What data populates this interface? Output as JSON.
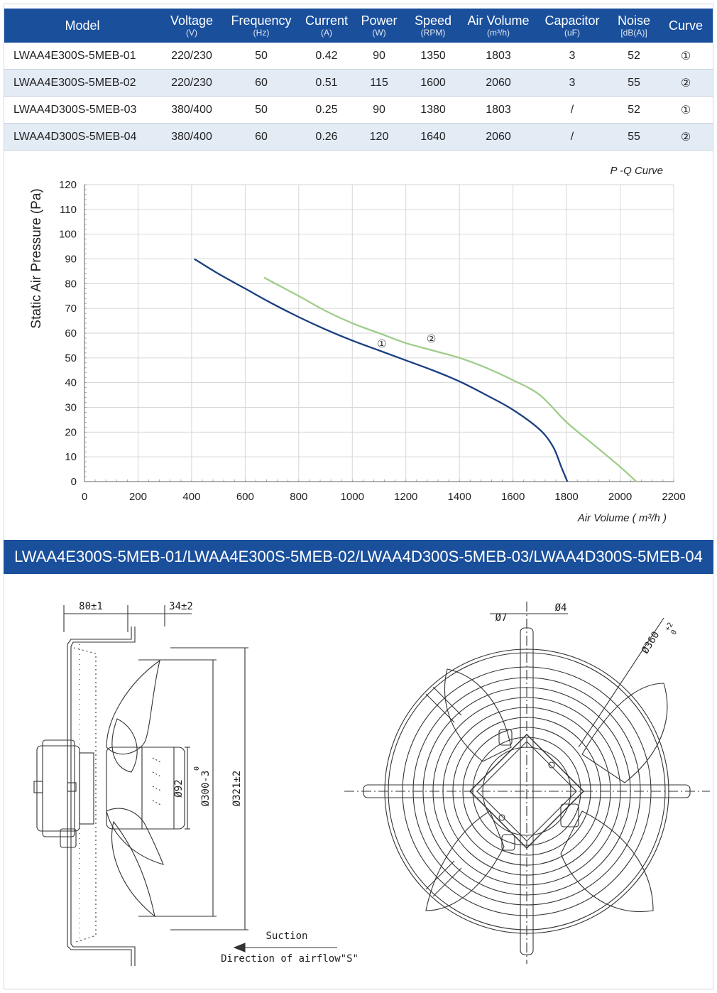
{
  "table": {
    "headers": [
      {
        "label": "Model",
        "unit": ""
      },
      {
        "label": "Voltage",
        "unit": "(V)"
      },
      {
        "label": "Frequency",
        "unit": "(Hz)"
      },
      {
        "label": "Current",
        "unit": "(A)"
      },
      {
        "label": "Power",
        "unit": "(W)"
      },
      {
        "label": "Speed",
        "unit": "(RPM)"
      },
      {
        "label": "Air Volume",
        "unit": "(m³/h)"
      },
      {
        "label": "Capacitor",
        "unit": "(uF)"
      },
      {
        "label": "Noise",
        "unit": "[dB(A)]"
      },
      {
        "label": "Curve",
        "unit": ""
      }
    ],
    "rows": [
      [
        "LWAA4E300S-5MEB-01",
        "220/230",
        "50",
        "0.42",
        "90",
        "1350",
        "1803",
        "3",
        "52",
        "①"
      ],
      [
        "LWAA4E300S-5MEB-02",
        "220/230",
        "60",
        "0.51",
        "115",
        "1600",
        "2060",
        "3",
        "55",
        "②"
      ],
      [
        "LWAA4D300S-5MEB-03",
        "380/400",
        "50",
        "0.25",
        "90",
        "1380",
        "1803",
        "/",
        "52",
        "①"
      ],
      [
        "LWAA4D300S-5MEB-04",
        "380/400",
        "60",
        "0.26",
        "120",
        "1640",
        "2060",
        "/",
        "55",
        "②"
      ]
    ]
  },
  "chart_data": {
    "type": "line",
    "title": "P -Q Curve",
    "xlabel": "Air Volume ( m³/h )",
    "ylabel": "Static Air Pressure  (Pa)",
    "xlim": [
      0,
      2200
    ],
    "ylim": [
      0,
      120
    ],
    "xticks": [
      0,
      200,
      400,
      600,
      800,
      1000,
      1200,
      1400,
      1600,
      1800,
      2000,
      2200
    ],
    "yticks": [
      0,
      10,
      20,
      30,
      40,
      50,
      60,
      70,
      80,
      90,
      100,
      110,
      120
    ],
    "grid": true,
    "series": [
      {
        "name": "①",
        "color": "#1b3f80",
        "points": [
          [
            410,
            90
          ],
          [
            500,
            84
          ],
          [
            600,
            78
          ],
          [
            700,
            72
          ],
          [
            800,
            66.5
          ],
          [
            900,
            61.5
          ],
          [
            1000,
            57
          ],
          [
            1100,
            53
          ],
          [
            1200,
            49
          ],
          [
            1300,
            45
          ],
          [
            1400,
            40.5
          ],
          [
            1500,
            35
          ],
          [
            1600,
            29
          ],
          [
            1700,
            21
          ],
          [
            1750,
            14
          ],
          [
            1780,
            6
          ],
          [
            1803,
            0
          ]
        ]
      },
      {
        "name": "②",
        "color": "#9fcd8a",
        "points": [
          [
            670,
            82.5
          ],
          [
            800,
            75
          ],
          [
            900,
            69
          ],
          [
            1000,
            64
          ],
          [
            1100,
            60
          ],
          [
            1200,
            56
          ],
          [
            1300,
            53
          ],
          [
            1400,
            50
          ],
          [
            1500,
            46
          ],
          [
            1600,
            41
          ],
          [
            1700,
            35
          ],
          [
            1800,
            24
          ],
          [
            1900,
            15
          ],
          [
            2000,
            6
          ],
          [
            2060,
            0
          ]
        ]
      }
    ]
  },
  "banner": "LWAA4E300S-5MEB-01/LWAA4E300S-5MEB-02/LWAA4D300S-5MEB-03/LWAA4D300S-5MEB-04",
  "drawing": {
    "dim_80": "80±1",
    "dim_34": "34±2",
    "dim_92": "Ø92",
    "dim_300": "Ø300-3",
    "dim_300_tol": "0",
    "dim_321": "Ø321±2",
    "dim_7": "Ø7",
    "dim_4": "Ø4",
    "dim_360": "Ø360",
    "dim_360_tol": "+2",
    "dim_360_tol2": "0",
    "suction": "Suction",
    "airflow": "Direction of airflow\"S\""
  },
  "colors": {
    "header": "#1a4f9c",
    "alt_row": "#e3ebf5",
    "curve1": "#1b3f80",
    "curve2": "#9fcd8a"
  }
}
